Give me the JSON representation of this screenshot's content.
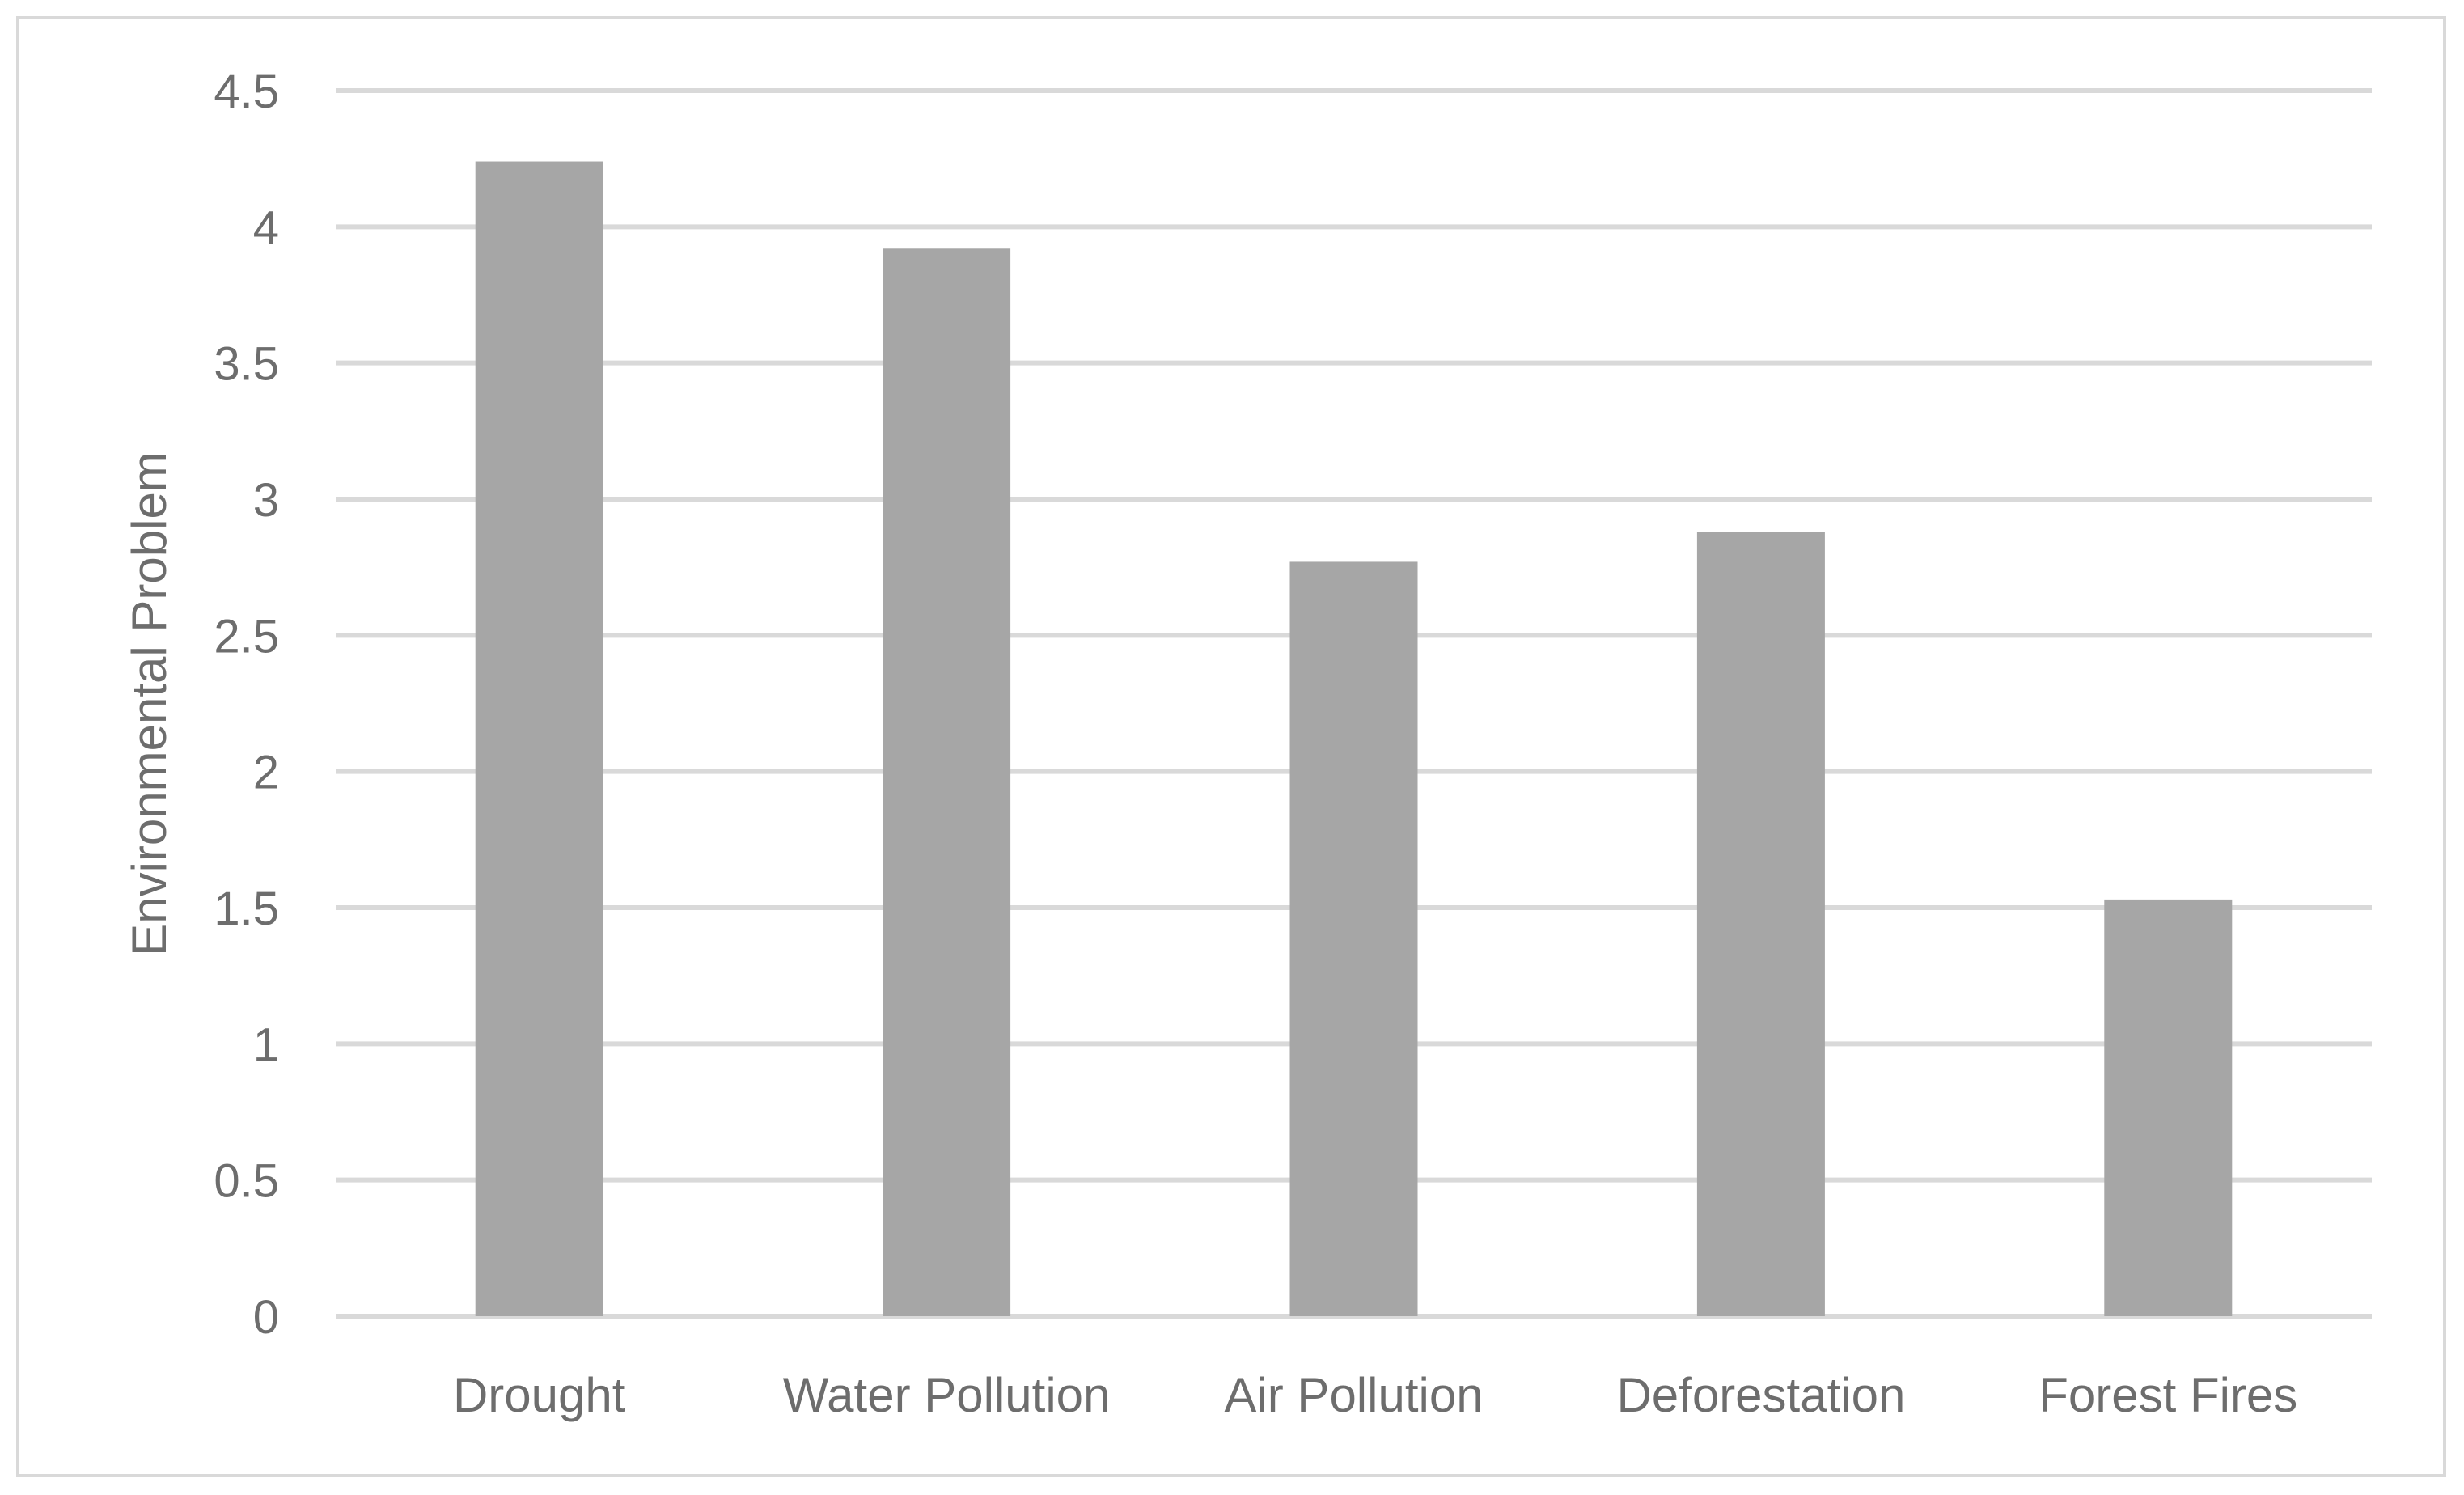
{
  "chart_data": {
    "type": "bar",
    "title": "",
    "xlabel": "",
    "ylabel": "Environmental Problem",
    "categories": [
      "Drought",
      "Water Pollution",
      "Air Pollution",
      "Deforestation",
      "Forest Fires"
    ],
    "values": [
      4.24,
      3.92,
      2.77,
      2.88,
      1.53
    ],
    "ylim": [
      0,
      4.5
    ],
    "yticks": [
      "0",
      "0.5",
      "1",
      "1.5",
      "2",
      "2.5",
      "3",
      "3.5",
      "4",
      "4.5"
    ],
    "grid": true,
    "legend": "none",
    "colors": {
      "bar": "#a6a6a6",
      "grid": "#d9d9d9",
      "text": "#6d6d6d"
    }
  }
}
